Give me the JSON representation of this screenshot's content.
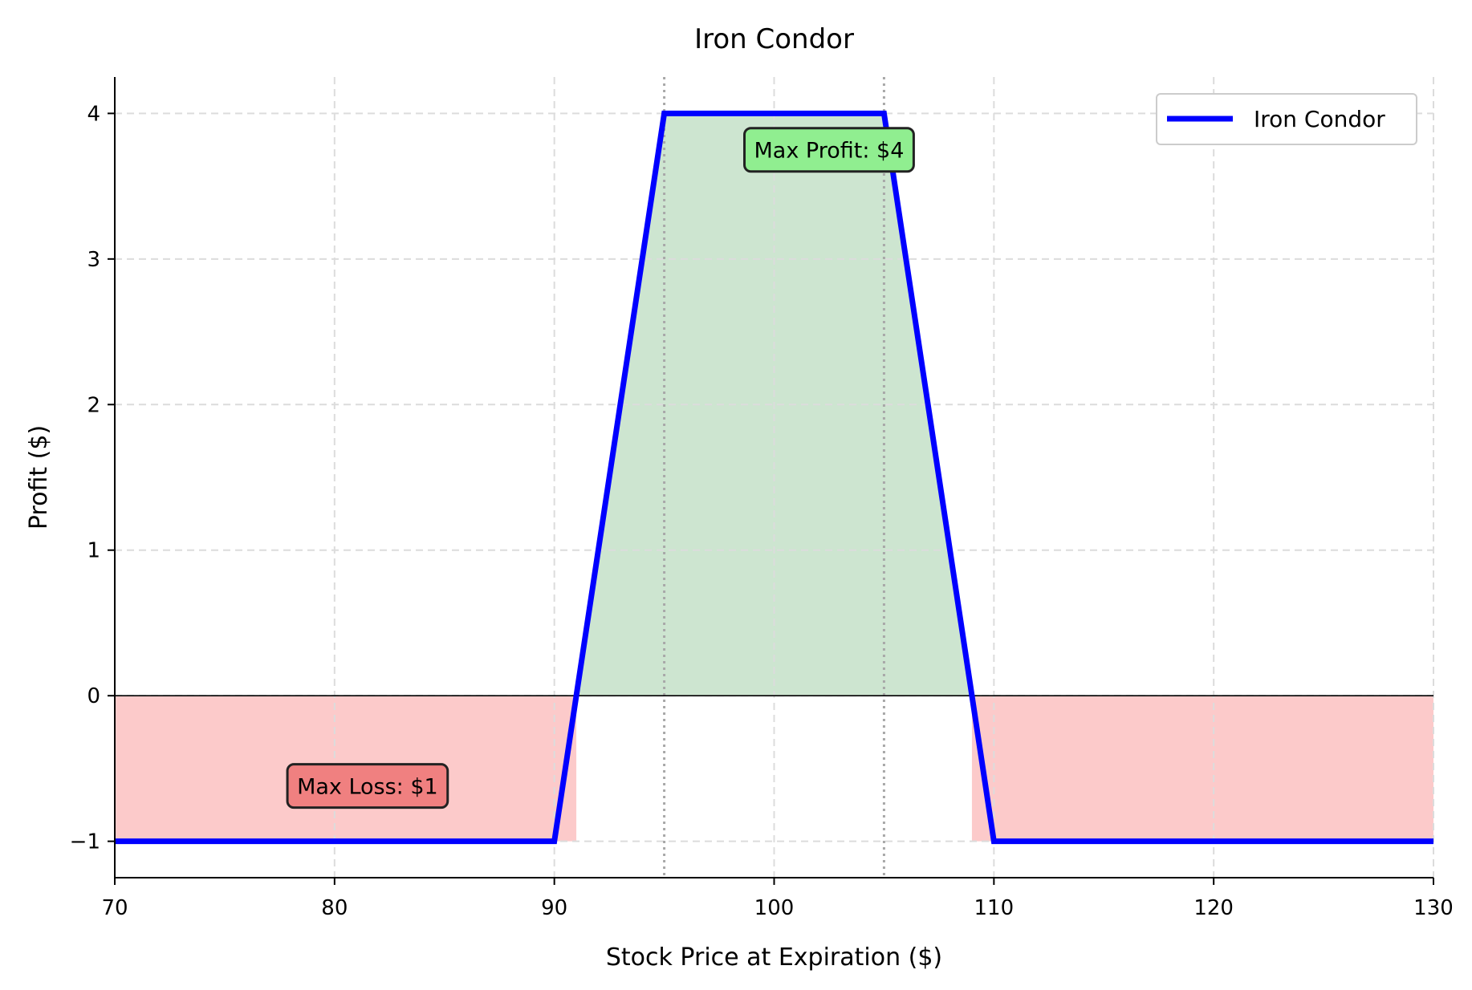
{
  "chart_data": {
    "type": "line",
    "title": "Iron Condor",
    "xlabel": "Stock Price at Expiration ($)",
    "ylabel": "Profit ($)",
    "xlim": [
      70,
      130
    ],
    "ylim": [
      -1.25,
      4.25
    ],
    "xticks": [
      70,
      80,
      90,
      100,
      110,
      120,
      130
    ],
    "yticks": [
      -1,
      0,
      1,
      2,
      3,
      4
    ],
    "xtick_labels": [
      "70",
      "80",
      "90",
      "100",
      "110",
      "120",
      "130"
    ],
    "ytick_labels": [
      "−1",
      "0",
      "1",
      "2",
      "3",
      "4"
    ],
    "grid": true,
    "legend_position": "top-right",
    "series": [
      {
        "name": "Iron Condor",
        "color": "#0000ff",
        "x": [
          70,
          90,
          90.2,
          95,
          105,
          109.8,
          110,
          130
        ],
        "y": [
          -1,
          -1,
          -0.8,
          4,
          4,
          -0.8,
          -1,
          -1
        ]
      }
    ],
    "strike_markers": [
      95,
      105
    ],
    "profit_fill_color": "#cde5d0",
    "loss_fill_color": "#fccaca",
    "annotations": [
      {
        "text": "Max Profit: $4",
        "x": 102.5,
        "y": 3.75,
        "box_color": "#90ee90"
      },
      {
        "text": "Max Loss: $1",
        "x": 81.5,
        "y": -0.62,
        "box_color": "#f08080"
      }
    ]
  }
}
